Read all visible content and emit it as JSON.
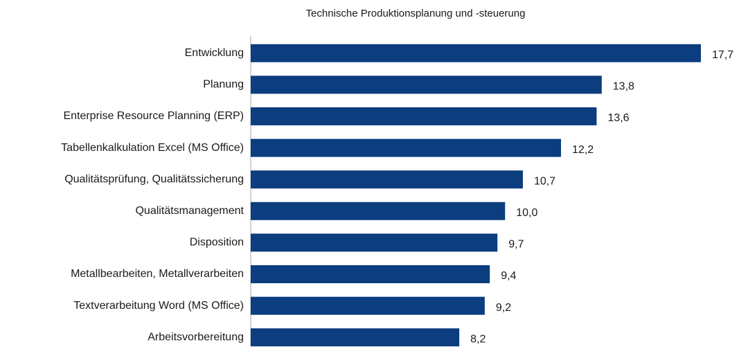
{
  "chart_data": {
    "type": "bar",
    "orientation": "horizontal",
    "title": "Technische Produktionsplanung und -steuerung",
    "categories": [
      "Entwicklung",
      "Planung",
      "Enterprise Resource Planning (ERP)",
      "Tabellenkalkulation Excel (MS Office)",
      "Qualitätsprüfung, Qualitätssicherung",
      "Qualitätsmanagement",
      "Disposition",
      "Metallbearbeiten, Metallverarbeiten",
      "Textverarbeitung Word (MS Office)",
      "Arbeitsvorbereitung"
    ],
    "values": [
      17.7,
      13.8,
      13.6,
      12.2,
      10.7,
      10.0,
      9.7,
      9.4,
      9.2,
      8.2
    ],
    "value_labels": [
      "17,7",
      "13,8",
      "13,6",
      "12,2",
      "10,7",
      "10,0",
      "9,7",
      "9,4",
      "9,2",
      "8,2"
    ],
    "color": "#0b3d7f"
  }
}
